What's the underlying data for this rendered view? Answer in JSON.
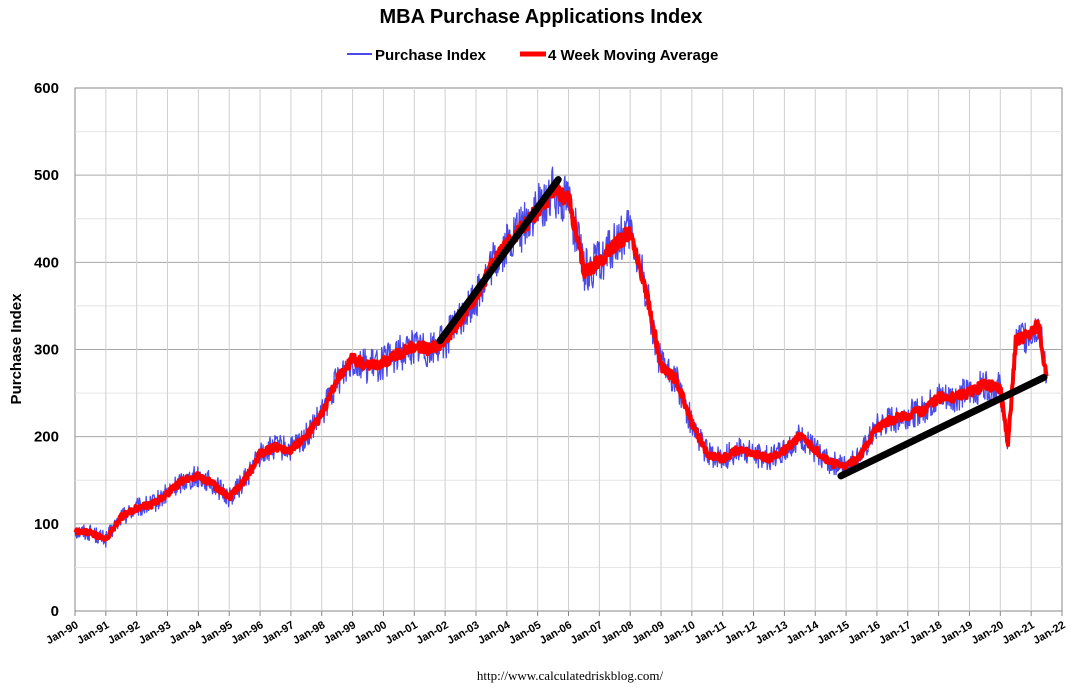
{
  "chart_data": {
    "type": "line",
    "title": "MBA Purchase Applications Index",
    "ylabel": "Purchase Index",
    "xlabel": "",
    "source": "http://www.calculatedriskblog.com/",
    "x_range": [
      "1990-01",
      "2022-01"
    ],
    "ylim": [
      0,
      600
    ],
    "y_ticks": [
      "0",
      "100",
      "200",
      "300",
      "400",
      "500",
      "600"
    ],
    "x_ticks": [
      "Jan-90",
      "Jan-91",
      "Jan-92",
      "Jan-93",
      "Jan-94",
      "Jan-95",
      "Jan-96",
      "Jan-97",
      "Jan-98",
      "Jan-99",
      "Jan-00",
      "Jan-01",
      "Jan-02",
      "Jan-03",
      "Jan-04",
      "Jan-05",
      "Jan-06",
      "Jan-07",
      "Jan-08",
      "Jan-09",
      "Jan-10",
      "Jan-11",
      "Jan-12",
      "Jan-13",
      "Jan-14",
      "Jan-15",
      "Jan-16",
      "Jan-17",
      "Jan-18",
      "Jan-19",
      "Jan-20",
      "Jan-21",
      "Jan-22"
    ],
    "grid": true,
    "legend_position": "top-center",
    "series": [
      {
        "name": "Purchase Index",
        "color": "#4a4ae8",
        "noise": 16,
        "x": [
          "1990-01",
          "1990-07",
          "1991-01",
          "1991-07",
          "1992-01",
          "1992-07",
          "1993-01",
          "1993-07",
          "1994-01",
          "1994-07",
          "1995-01",
          "1995-07",
          "1996-01",
          "1996-07",
          "1997-01",
          "1997-07",
          "1998-01",
          "1998-07",
          "1999-01",
          "1999-07",
          "2000-01",
          "2000-07",
          "2001-01",
          "2001-07",
          "2002-01",
          "2002-07",
          "2003-01",
          "2003-07",
          "2004-01",
          "2004-07",
          "2005-01",
          "2005-07",
          "2006-01",
          "2006-07",
          "2007-01",
          "2007-07",
          "2008-01",
          "2008-07",
          "2009-01",
          "2009-07",
          "2010-01",
          "2010-07",
          "2011-01",
          "2011-07",
          "2012-01",
          "2012-07",
          "2013-01",
          "2013-07",
          "2014-01",
          "2014-07",
          "2015-01",
          "2015-07",
          "2016-01",
          "2016-07",
          "2017-01",
          "2017-07",
          "2018-01",
          "2018-07",
          "2019-01",
          "2019-07",
          "2020-01",
          "2020-04",
          "2020-07",
          "2021-01",
          "2021-04",
          "2021-07"
        ],
        "values": [
          92,
          90,
          82,
          108,
          118,
          122,
          135,
          150,
          155,
          145,
          130,
          150,
          180,
          188,
          185,
          200,
          225,
          265,
          290,
          280,
          285,
          295,
          305,
          300,
          310,
          335,
          360,
          395,
          420,
          440,
          460,
          480,
          475,
          390,
          400,
          420,
          435,
          370,
          280,
          265,
          215,
          180,
          175,
          185,
          180,
          175,
          185,
          200,
          185,
          170,
          165,
          180,
          210,
          220,
          225,
          230,
          245,
          245,
          250,
          260,
          255,
          190,
          310,
          320,
          330,
          265
        ]
      },
      {
        "name": "4 Week Moving Average",
        "color": "#ff0000",
        "noise": 5,
        "x": [
          "1990-01",
          "1990-07",
          "1991-01",
          "1991-07",
          "1992-01",
          "1992-07",
          "1993-01",
          "1993-07",
          "1994-01",
          "1994-07",
          "1995-01",
          "1995-07",
          "1996-01",
          "1996-07",
          "1997-01",
          "1997-07",
          "1998-01",
          "1998-07",
          "1999-01",
          "1999-07",
          "2000-01",
          "2000-07",
          "2001-01",
          "2001-07",
          "2002-01",
          "2002-07",
          "2003-01",
          "2003-07",
          "2004-01",
          "2004-07",
          "2005-01",
          "2005-07",
          "2006-01",
          "2006-07",
          "2007-01",
          "2007-07",
          "2008-01",
          "2008-07",
          "2009-01",
          "2009-07",
          "2010-01",
          "2010-07",
          "2011-01",
          "2011-07",
          "2012-01",
          "2012-07",
          "2013-01",
          "2013-07",
          "2014-01",
          "2014-07",
          "2015-01",
          "2015-07",
          "2016-01",
          "2016-07",
          "2017-01",
          "2017-07",
          "2018-01",
          "2018-07",
          "2019-01",
          "2019-07",
          "2020-01",
          "2020-04",
          "2020-07",
          "2021-01",
          "2021-04",
          "2021-07"
        ],
        "values": [
          92,
          90,
          82,
          108,
          118,
          122,
          135,
          150,
          155,
          145,
          130,
          150,
          180,
          188,
          185,
          200,
          225,
          265,
          290,
          280,
          285,
          295,
          305,
          300,
          310,
          335,
          360,
          395,
          420,
          440,
          460,
          480,
          475,
          390,
          400,
          420,
          435,
          370,
          280,
          265,
          215,
          180,
          175,
          185,
          180,
          175,
          185,
          200,
          185,
          170,
          165,
          180,
          210,
          220,
          225,
          230,
          245,
          245,
          250,
          260,
          255,
          190,
          310,
          320,
          330,
          265
        ]
      }
    ],
    "trend_lines": [
      {
        "color": "#000000",
        "x": [
          "2001-11",
          "2005-09"
        ],
        "values": [
          310,
          495
        ]
      },
      {
        "color": "#000000",
        "x": [
          "2014-11",
          "2021-06"
        ],
        "values": [
          155,
          268
        ]
      }
    ]
  }
}
